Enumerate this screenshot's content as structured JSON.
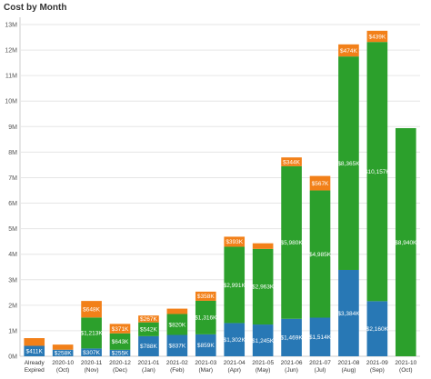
{
  "chart_data": {
    "type": "bar",
    "stacked": true,
    "title": "Cost by Month",
    "categories": [
      [
        "Already",
        "Expired"
      ],
      [
        "2020-10",
        "(Oct)"
      ],
      [
        "2020-11",
        "(Nov)"
      ],
      [
        "2020-12",
        "(Dec)"
      ],
      [
        "2021-01",
        "(Jan)"
      ],
      [
        "2021-02",
        "(Feb)"
      ],
      [
        "2021-03",
        "(Mar)"
      ],
      [
        "2021-04",
        "(Apr)"
      ],
      [
        "2021-05",
        "(May)"
      ],
      [
        "2021-06",
        "(Jun)"
      ],
      [
        "2021-07",
        "(Jul)"
      ],
      [
        "2021-08",
        "(Aug)"
      ],
      [
        "2021-09",
        "(Sep)"
      ],
      [
        "2021-10",
        "(Oct)"
      ]
    ],
    "series": [
      {
        "color": "#2878b5",
        "values": [
          411,
          258,
          307,
          255,
          788,
          837,
          859,
          1302,
          1245,
          1469,
          1514,
          3384,
          2160,
          0
        ],
        "labels": [
          "$411K",
          "$258K",
          "$307K",
          "$255K",
          "$788K",
          "$837K",
          "$859K",
          "$1,302K",
          "$1,245K",
          "$1,469K",
          "$1,514K",
          "$3,384K",
          "$2,160K",
          ""
        ]
      },
      {
        "color": "#2ca02c",
        "values": [
          0,
          0,
          1213,
          643,
          542,
          820,
          1316,
          2991,
          2963,
          5980,
          4985,
          8365,
          10157,
          8940
        ],
        "labels": [
          "",
          "",
          "$1,213K",
          "$643K",
          "$542K",
          "$820K",
          "$1,316K",
          "$2,991K",
          "$2,963K",
          "$5,980K",
          "$4,985K",
          "$8,365K",
          "$10,157K",
          "$8,940K"
        ]
      },
      {
        "color": "#f28019",
        "values": [
          300,
          200,
          648,
          371,
          267,
          210,
          358,
          393,
          220,
          344,
          567,
          474,
          439,
          0
        ],
        "labels": [
          "",
          "",
          "$648K",
          "$371K",
          "$267K",
          "",
          "$358K",
          "$393K",
          "",
          "$344K",
          "$567K",
          "$474K",
          "$439K",
          ""
        ]
      }
    ],
    "value_units": "thousands of dollars",
    "y_ticks": [
      "0M",
      "1M",
      "2M",
      "3M",
      "4M",
      "5M",
      "6M",
      "7M",
      "8M",
      "9M",
      "10M",
      "11M",
      "12M",
      "13M"
    ],
    "ylim": [
      0,
      13000
    ],
    "grid": true,
    "legend": "none"
  }
}
